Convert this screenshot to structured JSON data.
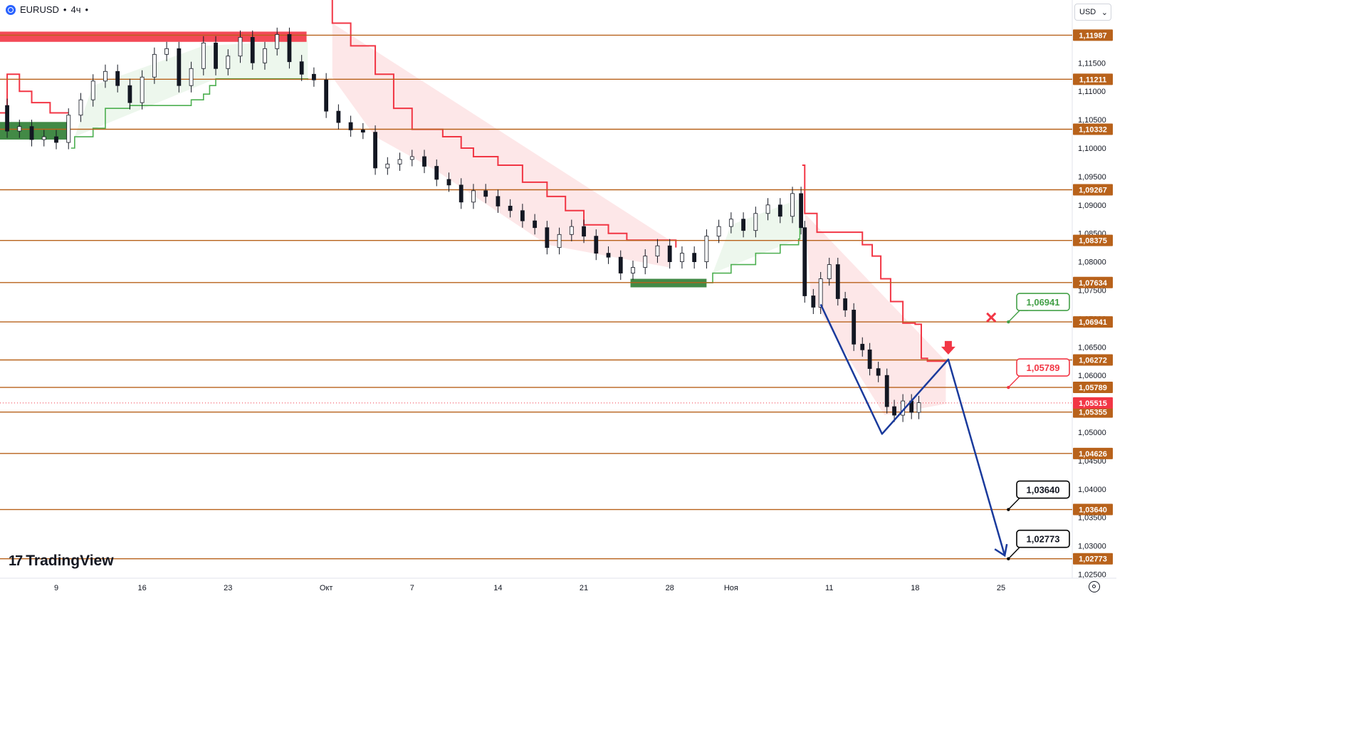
{
  "header": {
    "symbol": "EURUSD",
    "sep": "•",
    "interval": "4ч",
    "dot": "•"
  },
  "currency": {
    "label": "USD",
    "chevron": "⌄"
  },
  "logo": {
    "text": "TradingView",
    "mark": "17"
  },
  "chart_data": {
    "type": "candlestick",
    "ylim": [
      1.0225,
      1.1265
    ],
    "y_ticks": [
      "1,11500",
      "1,11000",
      "1,10500",
      "1,10000",
      "1,09500",
      "1,09000",
      "1,08500",
      "1,08000",
      "1,07500",
      "1,07000",
      "1,06500",
      "1,06000",
      "1,05500",
      "1,05000",
      "1,04500",
      "1,04000",
      "1,03500",
      "1,03000",
      "1,02500"
    ],
    "x_ticks": [
      {
        "label": "9",
        "day": 9
      },
      {
        "label": "16",
        "day": 16
      },
      {
        "label": "23",
        "day": 23
      },
      {
        "label": "Окт",
        "day": 31
      },
      {
        "label": "7",
        "day": 38
      },
      {
        "label": "14",
        "day": 45
      },
      {
        "label": "21",
        "day": 52
      },
      {
        "label": "28",
        "day": 59
      },
      {
        "label": "Ноя",
        "day": 64
      },
      {
        "label": "11",
        "day": 72
      },
      {
        "label": "18",
        "day": 79
      },
      {
        "label": "25",
        "day": 86
      }
    ],
    "levels": [
      {
        "label": "1,11987",
        "value": 1.11987
      },
      {
        "label": "1,11211",
        "value": 1.11211
      },
      {
        "label": "1,10332",
        "value": 1.10332
      },
      {
        "label": "1,09267",
        "value": 1.09267
      },
      {
        "label": "1,08375",
        "value": 1.08375
      },
      {
        "label": "1,07634",
        "value": 1.07634
      },
      {
        "label": "1,06941",
        "value": 1.06941
      },
      {
        "label": "1,06272",
        "value": 1.06272
      },
      {
        "label": "1,05789",
        "value": 1.05789
      },
      {
        "label": "1,05355",
        "value": 1.05355
      },
      {
        "label": "1,04626",
        "value": 1.04626
      },
      {
        "label": "1,03640",
        "value": 1.0364
      },
      {
        "label": "1,02773",
        "value": 1.02773
      }
    ],
    "current_price": {
      "label": "1,05515",
      "value": 1.05515
    },
    "callouts": [
      {
        "label": "1,06941",
        "value": 1.06941,
        "day": 86.6,
        "kind": "take-profit-cancelled",
        "color": "#43a047"
      },
      {
        "label": "1,05789",
        "value": 1.05789,
        "day": 86.6,
        "kind": "entry",
        "color": "#f23645"
      },
      {
        "label": "1,03640",
        "value": 1.0364,
        "day": 86.6,
        "kind": "target",
        "color": "#000000"
      },
      {
        "label": "1,02773",
        "value": 1.02773,
        "day": 86.6,
        "kind": "target",
        "color": "#000000"
      }
    ],
    "forecast_path": [
      {
        "day": 71.3,
        "value": 1.0725
      },
      {
        "day": 76.3,
        "value": 1.0497
      },
      {
        "day": 81.7,
        "value": 1.0628
      },
      {
        "day": 86.3,
        "value": 1.0283
      }
    ],
    "candles_ohlc_approx": [
      {
        "day": 0.0,
        "o": 1.105,
        "c": 1.104
      },
      {
        "day": 1.0,
        "o": 1.104,
        "c": 1.108
      },
      {
        "day": 2.0,
        "o": 1.108,
        "c": 1.11
      },
      {
        "day": 3.0,
        "o": 1.11,
        "c": 1.111
      },
      {
        "day": 4.0,
        "o": 1.1115,
        "c": 1.1075
      },
      {
        "day": 5.0,
        "o": 1.1075,
        "c": 1.103
      },
      {
        "day": 6.0,
        "o": 1.103,
        "c": 1.1038
      },
      {
        "day": 7.0,
        "o": 1.1038,
        "c": 1.1015
      },
      {
        "day": 8.0,
        "o": 1.1015,
        "c": 1.102
      },
      {
        "day": 9.0,
        "o": 1.102,
        "c": 1.101
      },
      {
        "day": 10.0,
        "o": 1.101,
        "c": 1.1058
      },
      {
        "day": 11.0,
        "o": 1.1058,
        "c": 1.1085
      },
      {
        "day": 12.0,
        "o": 1.1085,
        "c": 1.1118
      },
      {
        "day": 13.0,
        "o": 1.1118,
        "c": 1.1135
      },
      {
        "day": 14.0,
        "o": 1.1135,
        "c": 1.111
      },
      {
        "day": 15.0,
        "o": 1.111,
        "c": 1.108
      },
      {
        "day": 16.0,
        "o": 1.108,
        "c": 1.1125
      },
      {
        "day": 17.0,
        "o": 1.1125,
        "c": 1.1165
      },
      {
        "day": 18.0,
        "o": 1.1165,
        "c": 1.1175
      },
      {
        "day": 19.0,
        "o": 1.1175,
        "c": 1.111
      },
      {
        "day": 20.0,
        "o": 1.111,
        "c": 1.114
      },
      {
        "day": 21.0,
        "o": 1.114,
        "c": 1.1185
      },
      {
        "day": 22.0,
        "o": 1.1185,
        "c": 1.114
      },
      {
        "day": 23.0,
        "o": 1.114,
        "c": 1.1162
      },
      {
        "day": 24.0,
        "o": 1.1162,
        "c": 1.1195
      },
      {
        "day": 25.0,
        "o": 1.1195,
        "c": 1.115
      },
      {
        "day": 26.0,
        "o": 1.115,
        "c": 1.1175
      },
      {
        "day": 27.0,
        "o": 1.1175,
        "c": 1.12
      },
      {
        "day": 28.0,
        "o": 1.12,
        "c": 1.1152
      },
      {
        "day": 29.0,
        "o": 1.1152,
        "c": 1.113
      },
      {
        "day": 30.0,
        "o": 1.113,
        "c": 1.112
      },
      {
        "day": 31.0,
        "o": 1.112,
        "c": 1.1065
      },
      {
        "day": 32.0,
        "o": 1.1065,
        "c": 1.1045
      },
      {
        "day": 33.0,
        "o": 1.1045,
        "c": 1.1032
      },
      {
        "day": 34.0,
        "o": 1.1032,
        "c": 1.1028
      },
      {
        "day": 35.0,
        "o": 1.1028,
        "c": 1.0965
      },
      {
        "day": 36.0,
        "o": 1.0965,
        "c": 1.0972
      },
      {
        "day": 37.0,
        "o": 1.0972,
        "c": 1.098
      },
      {
        "day": 38.0,
        "o": 1.098,
        "c": 1.0985
      },
      {
        "day": 39.0,
        "o": 1.0985,
        "c": 1.0968
      },
      {
        "day": 40.0,
        "o": 1.0968,
        "c": 1.0945
      },
      {
        "day": 41.0,
        "o": 1.0945,
        "c": 1.0935
      },
      {
        "day": 42.0,
        "o": 1.0935,
        "c": 1.0905
      },
      {
        "day": 43.0,
        "o": 1.0905,
        "c": 1.0925
      },
      {
        "day": 44.0,
        "o": 1.0925,
        "c": 1.0915
      },
      {
        "day": 45.0,
        "o": 1.0915,
        "c": 1.0898
      },
      {
        "day": 46.0,
        "o": 1.0898,
        "c": 1.089
      },
      {
        "day": 47.0,
        "o": 1.089,
        "c": 1.0872
      },
      {
        "day": 48.0,
        "o": 1.0872,
        "c": 1.086
      },
      {
        "day": 49.0,
        "o": 1.086,
        "c": 1.0825
      },
      {
        "day": 50.0,
        "o": 1.0825,
        "c": 1.0848
      },
      {
        "day": 51.0,
        "o": 1.0848,
        "c": 1.0862
      },
      {
        "day": 52.0,
        "o": 1.0862,
        "c": 1.0845
      },
      {
        "day": 53.0,
        "o": 1.0845,
        "c": 1.0815
      },
      {
        "day": 54.0,
        "o": 1.0815,
        "c": 1.0808
      },
      {
        "day": 55.0,
        "o": 1.0808,
        "c": 1.078
      },
      {
        "day": 56.0,
        "o": 1.078,
        "c": 1.079
      },
      {
        "day": 57.0,
        "o": 1.079,
        "c": 1.081
      },
      {
        "day": 58.0,
        "o": 1.081,
        "c": 1.0828
      },
      {
        "day": 59.0,
        "o": 1.0828,
        "c": 1.08
      },
      {
        "day": 60.0,
        "o": 1.08,
        "c": 1.0815
      },
      {
        "day": 61.0,
        "o": 1.0815,
        "c": 1.08
      },
      {
        "day": 62.0,
        "o": 1.08,
        "c": 1.0845
      },
      {
        "day": 63.0,
        "o": 1.0845,
        "c": 1.0862
      },
      {
        "day": 64.0,
        "o": 1.0862,
        "c": 1.0875
      },
      {
        "day": 65.0,
        "o": 1.0875,
        "c": 1.0855
      },
      {
        "day": 66.0,
        "o": 1.0855,
        "c": 1.0885
      },
      {
        "day": 67.0,
        "o": 1.0885,
        "c": 1.09
      },
      {
        "day": 68.0,
        "o": 1.09,
        "c": 1.088
      },
      {
        "day": 69.0,
        "o": 1.088,
        "c": 1.092
      },
      {
        "day": 69.7,
        "o": 1.092,
        "c": 1.086
      },
      {
        "day": 70.0,
        "o": 1.086,
        "c": 1.074
      },
      {
        "day": 70.7,
        "o": 1.074,
        "c": 1.072
      },
      {
        "day": 71.3,
        "o": 1.072,
        "c": 1.077
      },
      {
        "day": 72.0,
        "o": 1.077,
        "c": 1.0795
      },
      {
        "day": 72.7,
        "o": 1.0795,
        "c": 1.0735
      },
      {
        "day": 73.3,
        "o": 1.0735,
        "c": 1.0715
      },
      {
        "day": 74.0,
        "o": 1.0715,
        "c": 1.0655
      },
      {
        "day": 74.7,
        "o": 1.0655,
        "c": 1.0645
      },
      {
        "day": 75.3,
        "o": 1.0645,
        "c": 1.0612
      },
      {
        "day": 76.0,
        "o": 1.0612,
        "c": 1.06
      },
      {
        "day": 76.7,
        "o": 1.06,
        "c": 1.0545
      },
      {
        "day": 77.3,
        "o": 1.0545,
        "c": 1.053
      },
      {
        "day": 78.0,
        "o": 1.053,
        "c": 1.0555
      },
      {
        "day": 78.7,
        "o": 1.0555,
        "c": 1.0535
      },
      {
        "day": 79.3,
        "o": 1.0535,
        "c": 1.0552
      }
    ]
  }
}
